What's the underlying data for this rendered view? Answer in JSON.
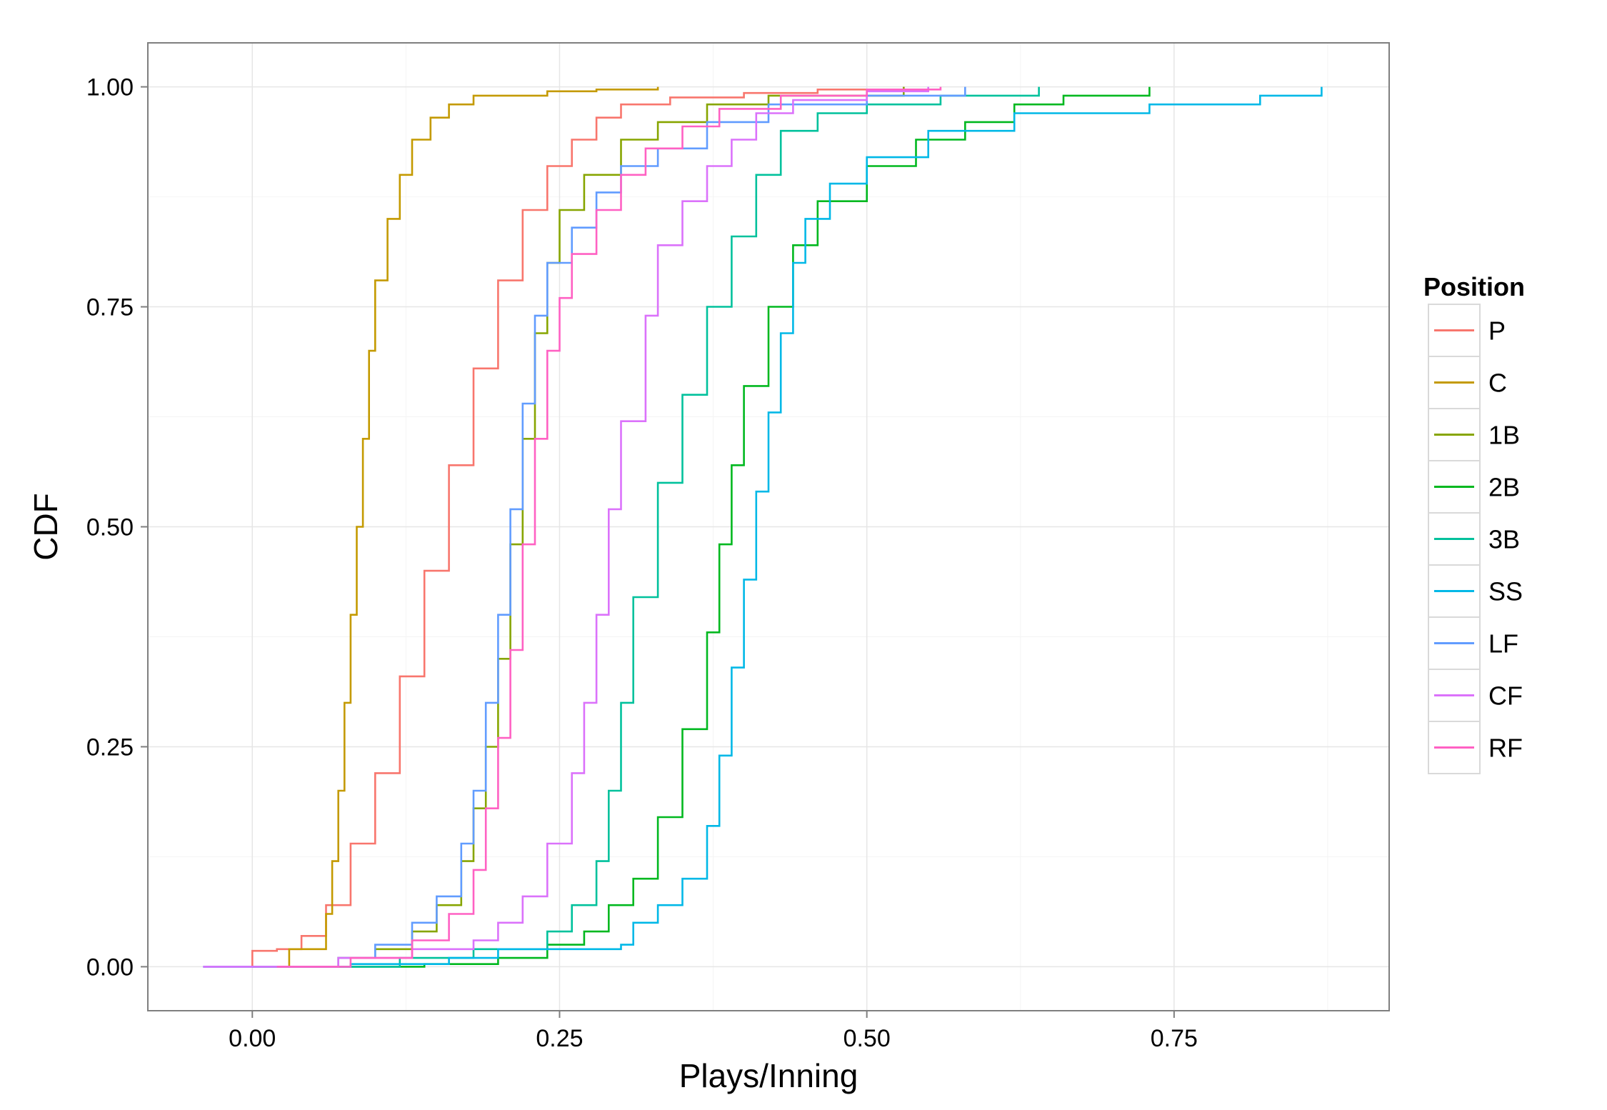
{
  "chart_data": {
    "type": "line",
    "title": "",
    "xlabel": "Plays/Inning",
    "ylabel": "CDF",
    "xlim": [
      -0.085,
      0.925
    ],
    "ylim": [
      -0.05,
      1.05
    ],
    "x_ticks": [
      0.0,
      0.25,
      0.5,
      0.75
    ],
    "x_tick_labels": [
      "0.00",
      "0.25",
      "0.50",
      "0.75"
    ],
    "y_ticks": [
      0.0,
      0.25,
      0.5,
      0.75,
      1.0
    ],
    "y_tick_labels": [
      "0.00",
      "0.25",
      "0.50",
      "0.75",
      "1.00"
    ],
    "grid": true,
    "legend_title": "Position",
    "legend_position": "right",
    "series": [
      {
        "name": "P",
        "color": "#F8766D",
        "points": [
          [
            0.0,
            0.0
          ],
          [
            0.0,
            0.018
          ],
          [
            0.02,
            0.02
          ],
          [
            0.04,
            0.035
          ],
          [
            0.06,
            0.07
          ],
          [
            0.08,
            0.14
          ],
          [
            0.1,
            0.22
          ],
          [
            0.12,
            0.33
          ],
          [
            0.14,
            0.45
          ],
          [
            0.16,
            0.57
          ],
          [
            0.18,
            0.68
          ],
          [
            0.2,
            0.78
          ],
          [
            0.22,
            0.86
          ],
          [
            0.24,
            0.91
          ],
          [
            0.26,
            0.94
          ],
          [
            0.28,
            0.965
          ],
          [
            0.3,
            0.98
          ],
          [
            0.34,
            0.988
          ],
          [
            0.4,
            0.993
          ],
          [
            0.46,
            0.997
          ],
          [
            0.53,
            1.0
          ]
        ]
      },
      {
        "name": "C",
        "color": "#C49A00",
        "points": [
          [
            0.0,
            0.0
          ],
          [
            0.03,
            0.02
          ],
          [
            0.06,
            0.06
          ],
          [
            0.065,
            0.12
          ],
          [
            0.07,
            0.2
          ],
          [
            0.075,
            0.3
          ],
          [
            0.08,
            0.4
          ],
          [
            0.085,
            0.5
          ],
          [
            0.09,
            0.6
          ],
          [
            0.095,
            0.7
          ],
          [
            0.1,
            0.78
          ],
          [
            0.11,
            0.85
          ],
          [
            0.12,
            0.9
          ],
          [
            0.13,
            0.94
          ],
          [
            0.145,
            0.965
          ],
          [
            0.16,
            0.98
          ],
          [
            0.18,
            0.99
          ],
          [
            0.24,
            0.995
          ],
          [
            0.28,
            0.997
          ],
          [
            0.33,
            1.0
          ]
        ]
      },
      {
        "name": "1B",
        "color": "#87A500",
        "points": [
          [
            0.0,
            0.0
          ],
          [
            0.07,
            0.01
          ],
          [
            0.1,
            0.02
          ],
          [
            0.13,
            0.04
          ],
          [
            0.15,
            0.07
          ],
          [
            0.17,
            0.12
          ],
          [
            0.18,
            0.18
          ],
          [
            0.19,
            0.25
          ],
          [
            0.2,
            0.35
          ],
          [
            0.21,
            0.48
          ],
          [
            0.22,
            0.6
          ],
          [
            0.23,
            0.72
          ],
          [
            0.24,
            0.8
          ],
          [
            0.25,
            0.86
          ],
          [
            0.27,
            0.9
          ],
          [
            0.3,
            0.94
          ],
          [
            0.33,
            0.96
          ],
          [
            0.37,
            0.98
          ],
          [
            0.42,
            0.99
          ],
          [
            0.53,
            1.0
          ]
        ]
      },
      {
        "name": "2B",
        "color": "#00B81F",
        "points": [
          [
            0.0,
            0.0
          ],
          [
            0.14,
            0.003
          ],
          [
            0.2,
            0.01
          ],
          [
            0.24,
            0.025
          ],
          [
            0.27,
            0.04
          ],
          [
            0.29,
            0.07
          ],
          [
            0.31,
            0.1
          ],
          [
            0.33,
            0.17
          ],
          [
            0.35,
            0.27
          ],
          [
            0.37,
            0.38
          ],
          [
            0.38,
            0.48
          ],
          [
            0.39,
            0.57
          ],
          [
            0.4,
            0.66
          ],
          [
            0.42,
            0.75
          ],
          [
            0.44,
            0.82
          ],
          [
            0.46,
            0.87
          ],
          [
            0.5,
            0.91
          ],
          [
            0.54,
            0.94
          ],
          [
            0.58,
            0.96
          ],
          [
            0.62,
            0.98
          ],
          [
            0.66,
            0.99
          ],
          [
            0.73,
            1.0
          ]
        ]
      },
      {
        "name": "3B",
        "color": "#00C19C",
        "points": [
          [
            0.0,
            0.0
          ],
          [
            0.12,
            0.01
          ],
          [
            0.18,
            0.02
          ],
          [
            0.24,
            0.04
          ],
          [
            0.26,
            0.07
          ],
          [
            0.28,
            0.12
          ],
          [
            0.29,
            0.2
          ],
          [
            0.3,
            0.3
          ],
          [
            0.31,
            0.42
          ],
          [
            0.33,
            0.55
          ],
          [
            0.35,
            0.65
          ],
          [
            0.37,
            0.75
          ],
          [
            0.39,
            0.83
          ],
          [
            0.41,
            0.9
          ],
          [
            0.43,
            0.95
          ],
          [
            0.46,
            0.97
          ],
          [
            0.5,
            0.98
          ],
          [
            0.56,
            0.99
          ],
          [
            0.64,
            1.0
          ]
        ]
      },
      {
        "name": "SS",
        "color": "#00B8E7",
        "points": [
          [
            -0.04,
            0.0
          ],
          [
            0.08,
            0.003
          ],
          [
            0.16,
            0.01
          ],
          [
            0.2,
            0.02
          ],
          [
            0.3,
            0.025
          ],
          [
            0.31,
            0.05
          ],
          [
            0.33,
            0.07
          ],
          [
            0.35,
            0.1
          ],
          [
            0.37,
            0.16
          ],
          [
            0.38,
            0.24
          ],
          [
            0.39,
            0.34
          ],
          [
            0.4,
            0.44
          ],
          [
            0.41,
            0.54
          ],
          [
            0.42,
            0.63
          ],
          [
            0.43,
            0.72
          ],
          [
            0.44,
            0.8
          ],
          [
            0.45,
            0.85
          ],
          [
            0.47,
            0.89
          ],
          [
            0.5,
            0.92
          ],
          [
            0.55,
            0.95
          ],
          [
            0.62,
            0.97
          ],
          [
            0.73,
            0.98
          ],
          [
            0.82,
            0.99
          ],
          [
            0.87,
            1.0
          ]
        ]
      },
      {
        "name": "LF",
        "color": "#619CFF",
        "points": [
          [
            -0.04,
            0.0
          ],
          [
            0.07,
            0.01
          ],
          [
            0.1,
            0.025
          ],
          [
            0.13,
            0.05
          ],
          [
            0.15,
            0.08
          ],
          [
            0.17,
            0.14
          ],
          [
            0.18,
            0.2
          ],
          [
            0.19,
            0.3
          ],
          [
            0.2,
            0.4
          ],
          [
            0.21,
            0.52
          ],
          [
            0.22,
            0.64
          ],
          [
            0.23,
            0.74
          ],
          [
            0.24,
            0.8
          ],
          [
            0.26,
            0.84
          ],
          [
            0.28,
            0.88
          ],
          [
            0.3,
            0.91
          ],
          [
            0.33,
            0.93
          ],
          [
            0.37,
            0.96
          ],
          [
            0.42,
            0.98
          ],
          [
            0.5,
            0.99
          ],
          [
            0.58,
            1.0
          ]
        ]
      },
      {
        "name": "CF",
        "color": "#DB72FB",
        "points": [
          [
            -0.04,
            0.0
          ],
          [
            0.07,
            0.01
          ],
          [
            0.13,
            0.02
          ],
          [
            0.18,
            0.03
          ],
          [
            0.2,
            0.05
          ],
          [
            0.22,
            0.08
          ],
          [
            0.24,
            0.14
          ],
          [
            0.26,
            0.22
          ],
          [
            0.27,
            0.3
          ],
          [
            0.28,
            0.4
          ],
          [
            0.29,
            0.52
          ],
          [
            0.3,
            0.62
          ],
          [
            0.32,
            0.74
          ],
          [
            0.33,
            0.82
          ],
          [
            0.35,
            0.87
          ],
          [
            0.37,
            0.91
          ],
          [
            0.39,
            0.94
          ],
          [
            0.41,
            0.97
          ],
          [
            0.44,
            0.985
          ],
          [
            0.5,
            0.995
          ],
          [
            0.55,
            1.0
          ]
        ]
      },
      {
        "name": "RF",
        "color": "#FF61C3",
        "points": [
          [
            0.02,
            0.0
          ],
          [
            0.08,
            0.01
          ],
          [
            0.13,
            0.03
          ],
          [
            0.16,
            0.06
          ],
          [
            0.18,
            0.11
          ],
          [
            0.19,
            0.18
          ],
          [
            0.2,
            0.26
          ],
          [
            0.21,
            0.36
          ],
          [
            0.22,
            0.48
          ],
          [
            0.23,
            0.6
          ],
          [
            0.24,
            0.7
          ],
          [
            0.25,
            0.76
          ],
          [
            0.26,
            0.81
          ],
          [
            0.28,
            0.86
          ],
          [
            0.3,
            0.9
          ],
          [
            0.32,
            0.93
          ],
          [
            0.35,
            0.955
          ],
          [
            0.38,
            0.975
          ],
          [
            0.43,
            0.99
          ],
          [
            0.5,
            0.997
          ],
          [
            0.56,
            1.0
          ]
        ]
      }
    ]
  }
}
